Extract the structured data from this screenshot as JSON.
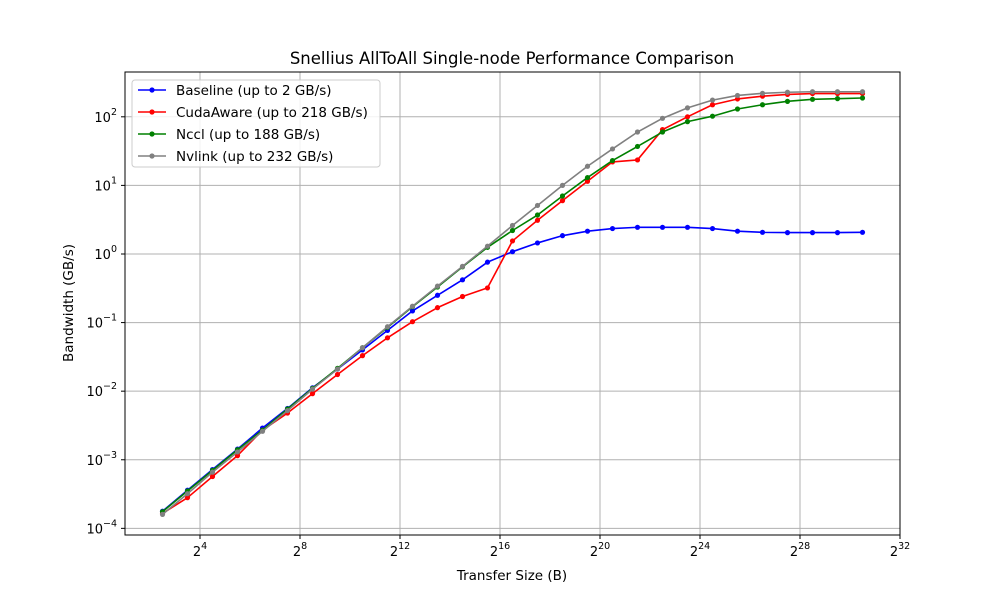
{
  "chart_data": {
    "type": "line",
    "title": "Snellius AllToAll Single-node Performance Comparison",
    "xlabel": "Transfer Size (B)",
    "ylabel": "Bandwidth (GB/s)",
    "x_scale": "log2",
    "y_scale": "log10",
    "grid": true,
    "legend_position": "top-left",
    "xlim": [
      2,
      4294967296
    ],
    "ylim": [
      8e-05,
      450
    ],
    "x_ticks": [
      {
        "value": 16,
        "base": "2",
        "exp": "4"
      },
      {
        "value": 256,
        "base": "2",
        "exp": "8"
      },
      {
        "value": 4096,
        "base": "2",
        "exp": "12"
      },
      {
        "value": 65536,
        "base": "2",
        "exp": "16"
      },
      {
        "value": 1048576,
        "base": "2",
        "exp": "20"
      },
      {
        "value": 16777216,
        "base": "2",
        "exp": "24"
      },
      {
        "value": 268435456,
        "base": "2",
        "exp": "28"
      },
      {
        "value": 4294967296,
        "base": "2",
        "exp": "32"
      }
    ],
    "y_ticks": [
      {
        "value": 0.0001,
        "base": "10",
        "exp": "−4"
      },
      {
        "value": 0.001,
        "base": "10",
        "exp": "−3"
      },
      {
        "value": 0.01,
        "base": "10",
        "exp": "−2"
      },
      {
        "value": 0.1,
        "base": "10",
        "exp": "−1"
      },
      {
        "value": 1,
        "base": "10",
        "exp": "0"
      },
      {
        "value": 10,
        "base": "10",
        "exp": "1"
      },
      {
        "value": 100,
        "base": "10",
        "exp": "2"
      }
    ],
    "x": [
      5.66,
      11.31,
      22.63,
      45.25,
      90.51,
      181.02,
      362.04,
      724.08,
      1448.15,
      2896.31,
      5792.62,
      11585.24,
      23170.48,
      46340.95,
      92681.9,
      185363.8,
      370727.6,
      741455.2,
      1482910.4,
      2965820.8,
      5931641.6,
      11863283.2,
      23726566.4,
      47453132.8,
      94906265.6,
      189812531.2,
      379625062.4,
      759250124.8,
      1518500249.6
    ],
    "series": [
      {
        "name": "Baseline (up to 2 GB/s)",
        "color": "#0000ff",
        "values": [
          0.000178,
          0.00036,
          0.00072,
          0.00143,
          0.0029,
          0.0056,
          0.0112,
          0.021,
          0.04,
          0.077,
          0.148,
          0.25,
          0.42,
          0.76,
          1.08,
          1.45,
          1.85,
          2.15,
          2.35,
          2.45,
          2.45,
          2.45,
          2.35,
          2.15,
          2.07,
          2.05,
          2.05,
          2.05,
          2.07
        ]
      },
      {
        "name": "CudaAware (up to 218 GB/s)",
        "color": "#ff0000",
        "values": [
          0.000165,
          0.00028,
          0.00057,
          0.00115,
          0.0027,
          0.0048,
          0.0092,
          0.0175,
          0.033,
          0.06,
          0.103,
          0.165,
          0.24,
          0.32,
          1.55,
          3.1,
          6.0,
          11.5,
          22.0,
          23.5,
          65.0,
          100.0,
          150.0,
          182.0,
          200.0,
          212.0,
          218.0,
          218.0,
          218.0
        ]
      },
      {
        "name": "Nccl (up to 188 GB/s)",
        "color": "#008000",
        "values": [
          0.000175,
          0.00035,
          0.0007,
          0.0014,
          0.0027,
          0.0055,
          0.011,
          0.0215,
          0.043,
          0.085,
          0.17,
          0.33,
          0.65,
          1.25,
          2.2,
          3.7,
          7.0,
          13.0,
          23.0,
          37.0,
          60.0,
          85.0,
          102.0,
          130.0,
          150.0,
          168.0,
          180.0,
          184.0,
          188.0
        ]
      },
      {
        "name": "Nvlink (up to 232 GB/s)",
        "color": "#808080",
        "values": [
          0.00016,
          0.00032,
          0.00066,
          0.0013,
          0.0026,
          0.0052,
          0.0107,
          0.021,
          0.043,
          0.087,
          0.173,
          0.34,
          0.66,
          1.3,
          2.6,
          5.1,
          10.0,
          19.0,
          34.0,
          60.0,
          95.0,
          135.0,
          175.0,
          205.0,
          220.0,
          228.0,
          232.0,
          232.0,
          232.0
        ]
      }
    ]
  }
}
